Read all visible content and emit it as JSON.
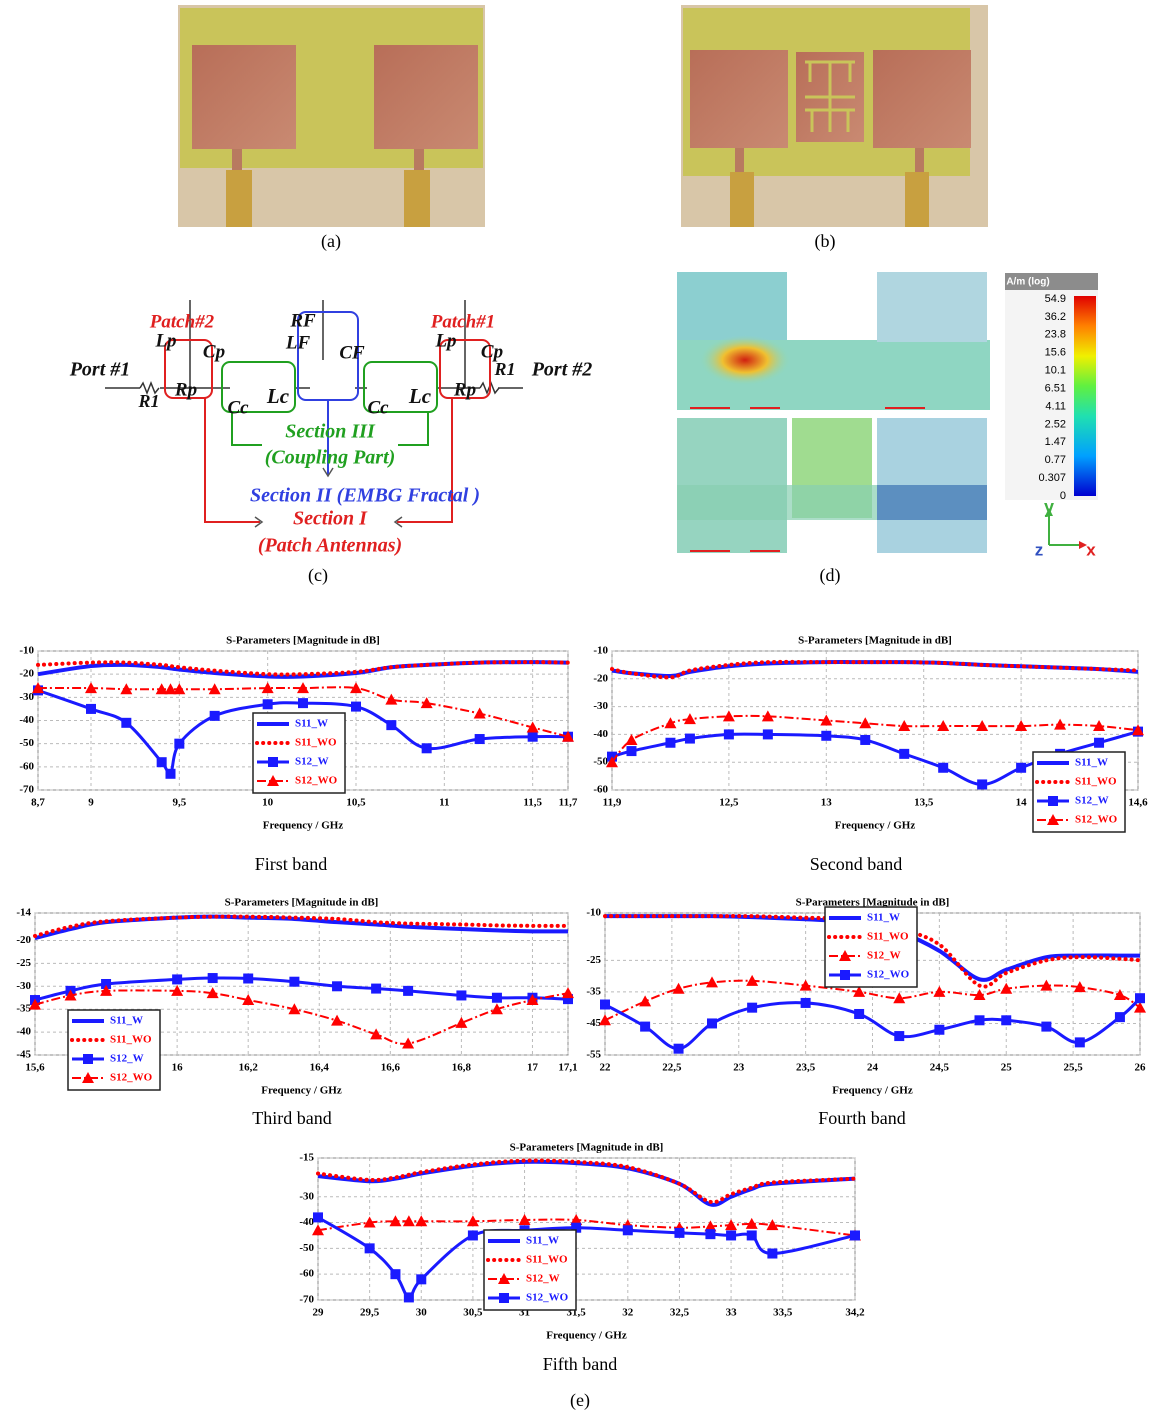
{
  "panels": [
    "(a)",
    "(b)",
    "(c)",
    "(d)"
  ],
  "figure_label": "(e)",
  "circuit": {
    "patch2": "Patch#2",
    "patch1": "Patch#1",
    "port1": "Port #1",
    "port2": "Port #2",
    "r1_left": "R1",
    "r1_right": "R1",
    "lp_left": "Lp",
    "cp_left": "Cp",
    "rp_left": "Rp",
    "lp_right": "Lp",
    "cp_right": "Cp",
    "rp_right": "Rp",
    "rf": "RF",
    "lf": "LF",
    "cf": "CF",
    "cc_left": "Cc",
    "lc_left": "Lc",
    "cc_right": "Cc",
    "lc_right": "Lc",
    "section3": "Section III",
    "section3_sub": "(Coupling Part)",
    "section2": "Section II (EMBG Fractal )",
    "section1": "Section I",
    "section1_sub": "(Patch Antennas)"
  },
  "field": {
    "colorbar_title": "A/m (log)",
    "colorbar_ticks": [
      54.9,
      36.2,
      23.8,
      15.6,
      10.1,
      6.51,
      4.11,
      2.52,
      1.47,
      0.77,
      0.307,
      0
    ],
    "axis_y": "y",
    "axis_z": "z",
    "axis_x": "x"
  },
  "chart_data": [
    {
      "type": "line",
      "title": "S-Parameters [Magnitude in dB]",
      "x_label": "Frequency / GHz",
      "caption": "First band",
      "grid": true,
      "xlim": [
        8.7,
        11.7
      ],
      "ylim": [
        -70,
        -10
      ],
      "xticks": [
        {
          "value": 8.7,
          "label": "8,7"
        },
        9,
        {
          "value": 9.5,
          "label": "9,5"
        },
        10,
        {
          "value": 10.5,
          "label": "10,5"
        },
        11,
        {
          "value": 11.5,
          "label": "11,5"
        },
        {
          "value": 11.7,
          "label": "11,7"
        }
      ],
      "yticks": [
        -10,
        -20,
        -30,
        -40,
        -50,
        -60,
        -70
      ],
      "x": [
        8.7,
        9.0,
        9.2,
        9.4,
        9.45,
        9.5,
        9.7,
        10.0,
        10.2,
        10.5,
        10.7,
        10.9,
        11.2,
        11.5,
        11.7
      ],
      "series": [
        {
          "name": "S11_W",
          "color": "#1a1aff",
          "style": "solid",
          "marker": "none",
          "values": [
            -20,
            -16.5,
            -16,
            -17,
            -17.5,
            -18,
            -19.5,
            -21,
            -21,
            -19.5,
            -17,
            -16,
            -15,
            -14.8,
            -15
          ]
        },
        {
          "name": "S11_WO",
          "color": "#ff0000",
          "style": "dotted",
          "marker": "none",
          "values": [
            -16,
            -15,
            -15,
            -16,
            -16.5,
            -17,
            -18.5,
            -20,
            -20,
            -19,
            -17,
            -16,
            -15,
            -14.8,
            -15
          ]
        },
        {
          "name": "S12_W",
          "color": "#1a1aff",
          "style": "solid-thin",
          "marker": "square",
          "values": [
            -27,
            -35,
            -41,
            -58,
            -63,
            -50,
            -38,
            -33,
            -32.5,
            -34,
            -42,
            -52,
            -48,
            -47,
            -47
          ]
        },
        {
          "name": "S12_WO",
          "color": "#ff0000",
          "style": "dashdot",
          "marker": "triangle",
          "values": [
            -26,
            -26,
            -26.5,
            -26.5,
            -26.5,
            -26.5,
            -26.5,
            -26,
            -26,
            -26,
            -31,
            -32.5,
            -37,
            -43,
            -47
          ]
        }
      ]
    },
    {
      "type": "line",
      "title": "S-Parameters [Magnitude in dB]",
      "x_label": "Frequency / GHz",
      "caption": "Second band",
      "grid": true,
      "xlim": [
        11.9,
        14.6
      ],
      "ylim": [
        -60,
        -10
      ],
      "xticks": [
        {
          "value": 11.9,
          "label": "11,9"
        },
        {
          "value": 12.5,
          "label": "12,5"
        },
        13,
        {
          "value": 13.5,
          "label": "13,5"
        },
        14,
        {
          "value": 14.6,
          "label": "14,6"
        }
      ],
      "yticks": [
        -10,
        -20,
        -30,
        -40,
        -50,
        -60
      ],
      "x": [
        11.9,
        12.0,
        12.2,
        12.3,
        12.5,
        12.7,
        13.0,
        13.2,
        13.4,
        13.6,
        13.8,
        14.0,
        14.2,
        14.4,
        14.6
      ],
      "series": [
        {
          "name": "S11_W",
          "color": "#1a1aff",
          "style": "solid",
          "marker": "none",
          "values": [
            -17,
            -18,
            -19,
            -17.5,
            -15.5,
            -14.5,
            -14,
            -14,
            -14,
            -14.3,
            -15,
            -15.5,
            -16,
            -16.5,
            -17.5
          ]
        },
        {
          "name": "S11_WO",
          "color": "#ff0000",
          "style": "dotted",
          "marker": "none",
          "values": [
            -16.5,
            -18,
            -19.5,
            -17,
            -15,
            -14,
            -14,
            -14,
            -14,
            -14.3,
            -15,
            -15.5,
            -16,
            -16.5,
            -17
          ]
        },
        {
          "name": "S12_W",
          "color": "#1a1aff",
          "style": "solid-thin",
          "marker": "square",
          "values": [
            -48,
            -46,
            -43,
            -41.5,
            -40,
            -40,
            -40.5,
            -42,
            -47,
            -52,
            -58,
            -52,
            -47,
            -43,
            -39
          ]
        },
        {
          "name": "S12_WO",
          "color": "#ff0000",
          "style": "dashdot",
          "marker": "triangle",
          "values": [
            -50,
            -42,
            -36,
            -34.5,
            -33.5,
            -33.5,
            -35,
            -36,
            -37,
            -37,
            -37,
            -37,
            -36.5,
            -37,
            -38.5
          ]
        }
      ]
    },
    {
      "type": "line",
      "title": "S-Parameters [Magnitude in dB]",
      "x_label": "Frequency / GHz",
      "caption": "Third band",
      "grid": true,
      "xlim": [
        15.6,
        17.1
      ],
      "ylim": [
        -45,
        -14
      ],
      "xticks": [
        {
          "value": 15.6,
          "label": "15,6"
        },
        16,
        {
          "value": 16.2,
          "label": "16,2"
        },
        {
          "value": 16.4,
          "label": "16,4"
        },
        {
          "value": 16.6,
          "label": "16,6"
        },
        {
          "value": 16.8,
          "label": "16,8"
        },
        17,
        {
          "value": 17.1,
          "label": "17,1"
        }
      ],
      "yticks": [
        -14,
        -20,
        -25,
        -30,
        -35,
        -40,
        -45
      ],
      "x": [
        15.6,
        15.7,
        15.8,
        16.0,
        16.1,
        16.2,
        16.33,
        16.45,
        16.56,
        16.65,
        16.8,
        16.9,
        17.0,
        17.1
      ],
      "series": [
        {
          "name": "S11_W",
          "color": "#1a1aff",
          "style": "solid",
          "marker": "none",
          "values": [
            -19.5,
            -17.5,
            -16,
            -15,
            -14.8,
            -15,
            -15.3,
            -16,
            -16.5,
            -17,
            -17.5,
            -17.8,
            -18,
            -18
          ]
        },
        {
          "name": "S11_WO",
          "color": "#ff0000",
          "style": "dotted",
          "marker": "none",
          "values": [
            -19,
            -17,
            -15.8,
            -15,
            -14.8,
            -14.8,
            -15,
            -15.3,
            -16,
            -16.3,
            -16.5,
            -16.7,
            -16.8,
            -16.8
          ]
        },
        {
          "name": "S12_W",
          "color": "#1a1aff",
          "style": "solid-thin",
          "marker": "square",
          "values": [
            -33,
            -31,
            -29.5,
            -28.5,
            -28.2,
            -28.3,
            -29,
            -30,
            -30.5,
            -31,
            -32,
            -32.5,
            -32.5,
            -32.8
          ]
        },
        {
          "name": "S12_WO",
          "color": "#ff0000",
          "style": "dashdot",
          "marker": "triangle",
          "values": [
            -34,
            -32,
            -31,
            -31,
            -31.5,
            -33,
            -35,
            -37.5,
            -40.5,
            -42.5,
            -38,
            -35,
            -33,
            -31.5
          ]
        }
      ]
    },
    {
      "type": "line",
      "title": "S-Parameters [Magnitude in dB]",
      "x_label": "Frequency / GHz",
      "caption": "Fourth band",
      "grid": true,
      "xlim": [
        22,
        26
      ],
      "ylim": [
        -55,
        -10
      ],
      "xticks": [
        22,
        {
          "value": 22.5,
          "label": "22,5"
        },
        23,
        {
          "value": 23.5,
          "label": "23,5"
        },
        24,
        {
          "value": 24.5,
          "label": "24,5"
        },
        25,
        {
          "value": 25.5,
          "label": "25,5"
        },
        26
      ],
      "yticks": [
        -10,
        -25,
        -35,
        -45,
        -55
      ],
      "x": [
        22,
        22.3,
        22.55,
        22.8,
        23.1,
        23.5,
        23.9,
        24.2,
        24.5,
        24.8,
        25.0,
        25.3,
        25.55,
        25.85,
        26
      ],
      "series": [
        {
          "name": "S11_W",
          "color": "#1a1aff",
          "style": "solid",
          "marker": "none",
          "values": [
            -11,
            -11,
            -11,
            -11,
            -11.3,
            -12,
            -13,
            -16,
            -22,
            -31,
            -28,
            -24,
            -23.5,
            -23.5,
            -23.5
          ]
        },
        {
          "name": "S11_WO",
          "color": "#ff0000",
          "style": "dotted",
          "marker": "none",
          "values": [
            -11,
            -11,
            -11,
            -11,
            -11,
            -11.5,
            -12,
            -15,
            -20,
            -33,
            -29,
            -25,
            -24,
            -24.5,
            -25
          ]
        },
        {
          "name": "S12_W",
          "color": "#ff0000",
          "style": "dashdot",
          "marker": "triangle",
          "values": [
            -44,
            -38,
            -34,
            -32,
            -31.5,
            -33,
            -35,
            -37,
            -35,
            -36,
            -34,
            -33,
            -33.5,
            -36,
            -40
          ]
        },
        {
          "name": "S12_WO",
          "color": "#1a1aff",
          "style": "solid-thin",
          "marker": "square",
          "values": [
            -39,
            -46,
            -53,
            -45,
            -40,
            -38.5,
            -42,
            -49,
            -47,
            -44,
            -44,
            -46,
            -51,
            -43,
            -37
          ]
        }
      ]
    },
    {
      "type": "line",
      "title": "S-Parameters [Magnitude in dB]",
      "x_label": "Frequency / GHz",
      "caption": "Fifth band",
      "grid": true,
      "xlim": [
        29,
        34.2
      ],
      "ylim": [
        -70,
        -15
      ],
      "xticks": [
        29,
        {
          "value": 29.5,
          "label": "29,5"
        },
        30,
        {
          "value": 30.5,
          "label": "30,5"
        },
        31,
        {
          "value": 31.5,
          "label": "31,5"
        },
        32,
        {
          "value": 32.5,
          "label": "32,5"
        },
        33,
        {
          "value": 33.5,
          "label": "33,5"
        },
        {
          "value": 34.2,
          "label": "34,2"
        }
      ],
      "yticks": [
        -15,
        -30,
        -40,
        -50,
        -60,
        -70
      ],
      "x": [
        29,
        29.5,
        29.75,
        29.88,
        30,
        30.5,
        31,
        31.5,
        32,
        32.5,
        32.8,
        33,
        33.2,
        33.4,
        34.2
      ],
      "series": [
        {
          "name": "S11_W",
          "color": "#1a1aff",
          "style": "solid",
          "marker": "none",
          "values": [
            -22,
            -24,
            -23,
            -22,
            -21,
            -18,
            -16.5,
            -17,
            -19,
            -25,
            -33,
            -30,
            -27,
            -25,
            -23
          ]
        },
        {
          "name": "S11_WO",
          "color": "#ff0000",
          "style": "dotted",
          "marker": "none",
          "values": [
            -21,
            -23.5,
            -22.5,
            -21.5,
            -20.5,
            -17.5,
            -16,
            -16.5,
            -18.5,
            -25,
            -32,
            -29,
            -26.5,
            -24.5,
            -23
          ]
        },
        {
          "name": "S12_W",
          "color": "#ff0000",
          "style": "dashdot",
          "marker": "triangle",
          "values": [
            -43,
            -40,
            -39.5,
            -39.5,
            -39.5,
            -39.5,
            -39,
            -39,
            -41,
            -42,
            -41.5,
            -41,
            -40.5,
            -41,
            -45
          ]
        },
        {
          "name": "S12_WO",
          "color": "#1a1aff",
          "style": "solid-thin",
          "marker": "square",
          "values": [
            -38,
            -50,
            -60,
            -69,
            -62,
            -45,
            -43,
            -42,
            -43,
            -44,
            -44.5,
            -45,
            -45,
            -52,
            -45
          ]
        }
      ]
    }
  ]
}
